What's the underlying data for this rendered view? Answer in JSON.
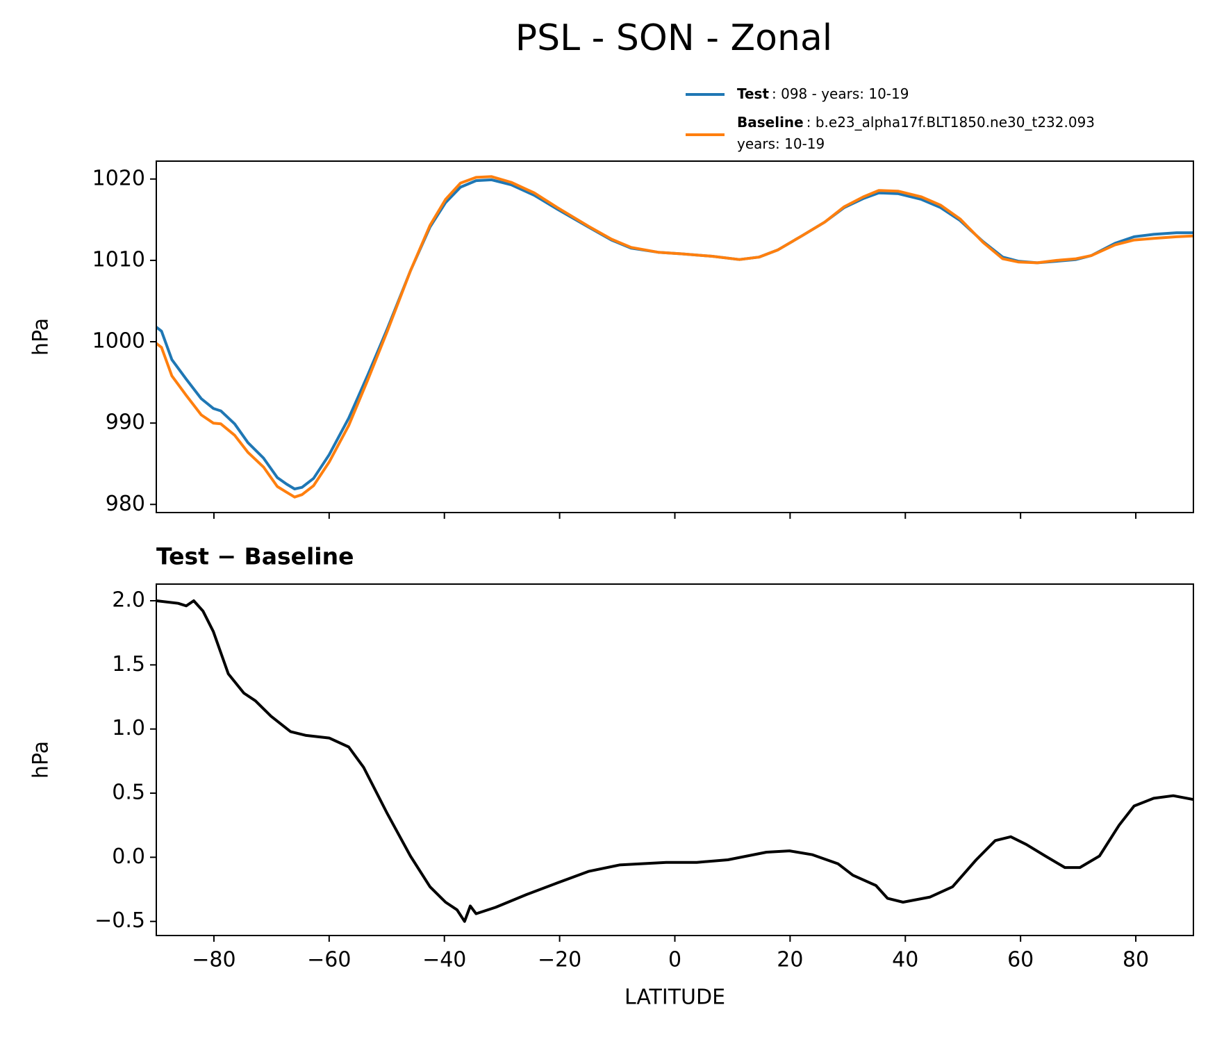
{
  "title": "PSL - SON - Zonal",
  "chart_data": [
    {
      "type": "line",
      "ylabel": "hPa",
      "legend": "above right",
      "xlim": [
        -90,
        90
      ],
      "ylim": [
        979,
        1022.2
      ],
      "xticks": [
        {
          "value": -80,
          "label": "−80"
        },
        {
          "value": -60,
          "label": "−60"
        },
        {
          "value": -40,
          "label": "−40"
        },
        {
          "value": -20,
          "label": "−20"
        },
        0,
        20,
        40,
        60,
        80
      ],
      "yticks": [
        980,
        990,
        1000,
        1010,
        1020
      ],
      "x": [
        -90,
        -89.1,
        -87.3,
        -84.8,
        -82.2,
        -80.1,
        -78.8,
        -76.4,
        -74.1,
        -71.4,
        -69.0,
        -67.4,
        -66.0,
        -64.7,
        -62.7,
        -60.0,
        -56.6,
        -53.3,
        -49.9,
        -45.9,
        -42.5,
        -39.8,
        -37.2,
        -34.5,
        -31.8,
        -28.4,
        -24.4,
        -20.4,
        -15.0,
        -11.0,
        -7.6,
        -2.9,
        1.2,
        6.5,
        11.2,
        14.6,
        17.9,
        22.0,
        26.0,
        29.4,
        32.7,
        35.4,
        38.8,
        42.8,
        46.1,
        49.5,
        53.5,
        56.9,
        59.6,
        62.9,
        66.3,
        69.6,
        72.3,
        76.4,
        79.7,
        83.1,
        87.1,
        90
      ],
      "series": [
        {
          "name": "Test",
          "legend_text": [
            ": 098 - years: 10-19"
          ],
          "color": "#1f77b4",
          "values": [
            1001.8,
            1001.3,
            997.8,
            995.4,
            993.0,
            991.8,
            991.5,
            989.9,
            987.6,
            985.7,
            983.3,
            982.5,
            981.9,
            982.1,
            983.2,
            986.1,
            990.6,
            995.9,
            1001.6,
            1008.7,
            1014.1,
            1017.1,
            1019.0,
            1019.8,
            1019.9,
            1019.3,
            1018.0,
            1016.3,
            1014.1,
            1012.5,
            1011.5,
            1011.0,
            1010.8,
            1010.5,
            1010.1,
            1010.4,
            1011.3,
            1013.0,
            1014.7,
            1016.5,
            1017.6,
            1018.3,
            1018.2,
            1017.5,
            1016.5,
            1014.9,
            1012.3,
            1010.4,
            1009.9,
            1009.7,
            1009.9,
            1010.1,
            1010.6,
            1012.1,
            1012.9,
            1013.2,
            1013.4,
            1013.4
          ]
        },
        {
          "name": "Baseline",
          "legend_text": [
            ": b.e23_alpha17f.BLT1850.ne30_t232.093",
            "years: 10-19"
          ],
          "color": "#ff7f0e",
          "values": [
            999.8,
            999.3,
            995.8,
            993.4,
            991.0,
            990.0,
            989.9,
            988.5,
            986.4,
            984.6,
            982.2,
            981.5,
            980.9,
            981.2,
            982.3,
            985.2,
            989.7,
            995.3,
            1001.3,
            1008.7,
            1014.3,
            1017.5,
            1019.5,
            1020.2,
            1020.3,
            1019.6,
            1018.3,
            1016.5,
            1014.2,
            1012.6,
            1011.6,
            1011.0,
            1010.8,
            1010.5,
            1010.1,
            1010.4,
            1011.3,
            1013.0,
            1014.7,
            1016.6,
            1017.8,
            1018.6,
            1018.5,
            1017.8,
            1016.8,
            1015.1,
            1012.2,
            1010.2,
            1009.8,
            1009.7,
            1010.0,
            1010.2,
            1010.6,
            1011.9,
            1012.5,
            1012.7,
            1012.9,
            1013.0
          ]
        }
      ]
    },
    {
      "type": "line",
      "title": "Test − Baseline",
      "ylabel": "hPa",
      "xlabel": "LATITUDE",
      "xlim": [
        -90,
        90
      ],
      "ylim": [
        -0.61,
        2.13
      ],
      "xticks": [
        {
          "value": -80,
          "label": "−80"
        },
        {
          "value": -60,
          "label": "−60"
        },
        {
          "value": -40,
          "label": "−40"
        },
        {
          "value": -20,
          "label": "−20"
        },
        0,
        20,
        40,
        60,
        80
      ],
      "yticks": [
        {
          "value": -0.5,
          "label": "−0.5"
        },
        {
          "value": 0,
          "label": "0.0"
        },
        0.5,
        {
          "value": 1,
          "label": "1.0"
        },
        1.5,
        {
          "value": 2,
          "label": "2.0"
        }
      ],
      "x": [
        -90,
        -86.2,
        -84.8,
        -83.5,
        -81.9,
        -80.1,
        -77.5,
        -74.8,
        -72.8,
        -70.1,
        -66.7,
        -64.0,
        -60.0,
        -56.6,
        -54.0,
        -49.9,
        -45.9,
        -42.5,
        -39.8,
        -37.8,
        -36.5,
        -35.5,
        -34.5,
        -31.1,
        -25.7,
        -20.4,
        -15.0,
        -9.6,
        -1.5,
        3.8,
        9.2,
        15.9,
        19.9,
        23.9,
        28.3,
        30.9,
        34.9,
        36.9,
        39.6,
        44.3,
        48.2,
        52.3,
        55.6,
        58.3,
        61.0,
        64.3,
        67.7,
        70.3,
        73.7,
        77.1,
        79.7,
        83.1,
        86.5,
        90
      ],
      "series": [
        {
          "color": "#000000",
          "values": [
            2.0,
            1.98,
            1.96,
            2.0,
            1.92,
            1.76,
            1.43,
            1.28,
            1.22,
            1.1,
            0.98,
            0.95,
            0.93,
            0.86,
            0.7,
            0.34,
            0.01,
            -0.23,
            -0.35,
            -0.41,
            -0.5,
            -0.38,
            -0.44,
            -0.39,
            -0.29,
            -0.2,
            -0.11,
            -0.06,
            -0.04,
            -0.04,
            -0.02,
            0.04,
            0.05,
            0.02,
            -0.05,
            -0.14,
            -0.22,
            -0.32,
            -0.35,
            -0.31,
            -0.23,
            -0.02,
            0.13,
            0.16,
            0.1,
            0.01,
            -0.08,
            -0.08,
            0.01,
            0.25,
            0.4,
            0.46,
            0.48,
            0.45
          ]
        }
      ]
    }
  ]
}
